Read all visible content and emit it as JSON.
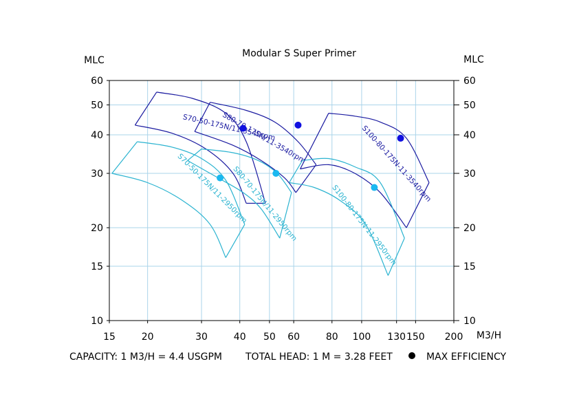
{
  "chart_data": {
    "type": "performance-envelope",
    "title": "Modular S Super Primer",
    "ylabel_left": "MLC",
    "ylabel_right": "MLC",
    "xlabel": "M3/H",
    "xscale": "log",
    "yscale": "log",
    "xlim": [
      15,
      200
    ],
    "ylim": [
      10,
      60
    ],
    "x_ticks": [
      15,
      20,
      30,
      40,
      50,
      60,
      80,
      100,
      130,
      150,
      200
    ],
    "y_ticks": [
      10,
      15,
      20,
      30,
      40,
      50,
      60
    ],
    "grid": true,
    "footer": {
      "capacity": "CAPACITY: 1 M3/H = 4.4 USGPM",
      "head": "TOTAL HEAD: 1 M = 3.28 FEET",
      "legend": "MAX EFFICIENCY"
    },
    "colors": {
      "rpm_3540": "#1a1aa0",
      "rpm_2950": "#2ab3d0",
      "point_3540": "#1010e0",
      "point_2950": "#1ab8f0",
      "grid": "#aad4ea"
    },
    "envelopes": [
      {
        "name": "S70-50-175N/11-3540rpm",
        "rpm_group": "3540",
        "upper": [
          [
            21.4,
            55
          ],
          [
            28,
            52.5
          ],
          [
            36,
            47
          ],
          [
            42,
            38
          ],
          [
            48.5,
            24
          ]
        ],
        "lower": [
          [
            18.2,
            43
          ],
          [
            24,
            40.5
          ],
          [
            31,
            36
          ],
          [
            38,
            30
          ],
          [
            42,
            24
          ]
        ],
        "label_anchor": [
          26,
          45
        ],
        "label_angle": 13,
        "bep": [
          41,
          42
        ]
      },
      {
        "name": "S80-70-175N/11-3540rpm",
        "rpm_group": "3540",
        "upper": [
          [
            32,
            51
          ],
          [
            42,
            48
          ],
          [
            52,
            44
          ],
          [
            62,
            38
          ],
          [
            71,
            32
          ]
        ],
        "lower": [
          [
            28.5,
            41
          ],
          [
            38,
            37
          ],
          [
            47,
            33
          ],
          [
            56,
            29
          ],
          [
            61,
            26
          ]
        ],
        "label_anchor": [
          35,
          46
        ],
        "label_angle": 30,
        "bep": [
          62,
          43
        ]
      },
      {
        "name": "S100-80-175N-11-3540rpm",
        "rpm_group": "3540",
        "upper": [
          [
            78,
            47
          ],
          [
            95,
            46
          ],
          [
            115,
            44
          ],
          [
            140,
            39
          ],
          [
            166,
            28
          ]
        ],
        "lower": [
          [
            63,
            31
          ],
          [
            78,
            32
          ],
          [
            95,
            30
          ],
          [
            115,
            26
          ],
          [
            140,
            20
          ]
        ],
        "label_anchor": [
          100,
          42
        ],
        "label_angle": 48,
        "bep": [
          134,
          39
        ]
      },
      {
        "name": "S70-50-175N/11-2950rpm",
        "rpm_group": "2950",
        "upper": [
          [
            18.5,
            38
          ],
          [
            24,
            36.5
          ],
          [
            30,
            33.5
          ],
          [
            36,
            28.5
          ],
          [
            41.5,
            20.5
          ]
        ],
        "lower": [
          [
            15.3,
            30
          ],
          [
            20,
            28
          ],
          [
            26,
            24.5
          ],
          [
            32,
            20.5
          ],
          [
            36,
            16
          ]
        ],
        "label_anchor": [
          25,
          34
        ],
        "label_angle": 45,
        "bep": [
          34.5,
          29
        ]
      },
      {
        "name": "S80-70-175N/11-2950rpm",
        "rpm_group": "2950",
        "upper": [
          [
            30,
            36
          ],
          [
            38,
            35
          ],
          [
            46,
            33
          ],
          [
            53,
            30
          ],
          [
            59,
            26
          ]
        ],
        "lower": [
          [
            27,
            33
          ],
          [
            34,
            29
          ],
          [
            41,
            26
          ],
          [
            47,
            23
          ],
          [
            54,
            18.5
          ]
        ],
        "label_anchor": [
          38,
          31
        ],
        "label_angle": 50,
        "bep": [
          52.5,
          30
        ]
      },
      {
        "name": "S100-80-175N-11-2950rpm",
        "rpm_group": "2950",
        "upper": [
          [
            64,
            33
          ],
          [
            78,
            33.5
          ],
          [
            95,
            31.5
          ],
          [
            115,
            28
          ],
          [
            138,
            18.5
          ]
        ],
        "lower": [
          [
            58,
            28
          ],
          [
            70,
            27
          ],
          [
            85,
            24.5
          ],
          [
            103,
            20.5
          ],
          [
            122,
            14
          ]
        ],
        "label_anchor": [
          80,
          27
        ],
        "label_angle": 52,
        "bep": [
          110,
          27
        ]
      }
    ]
  }
}
